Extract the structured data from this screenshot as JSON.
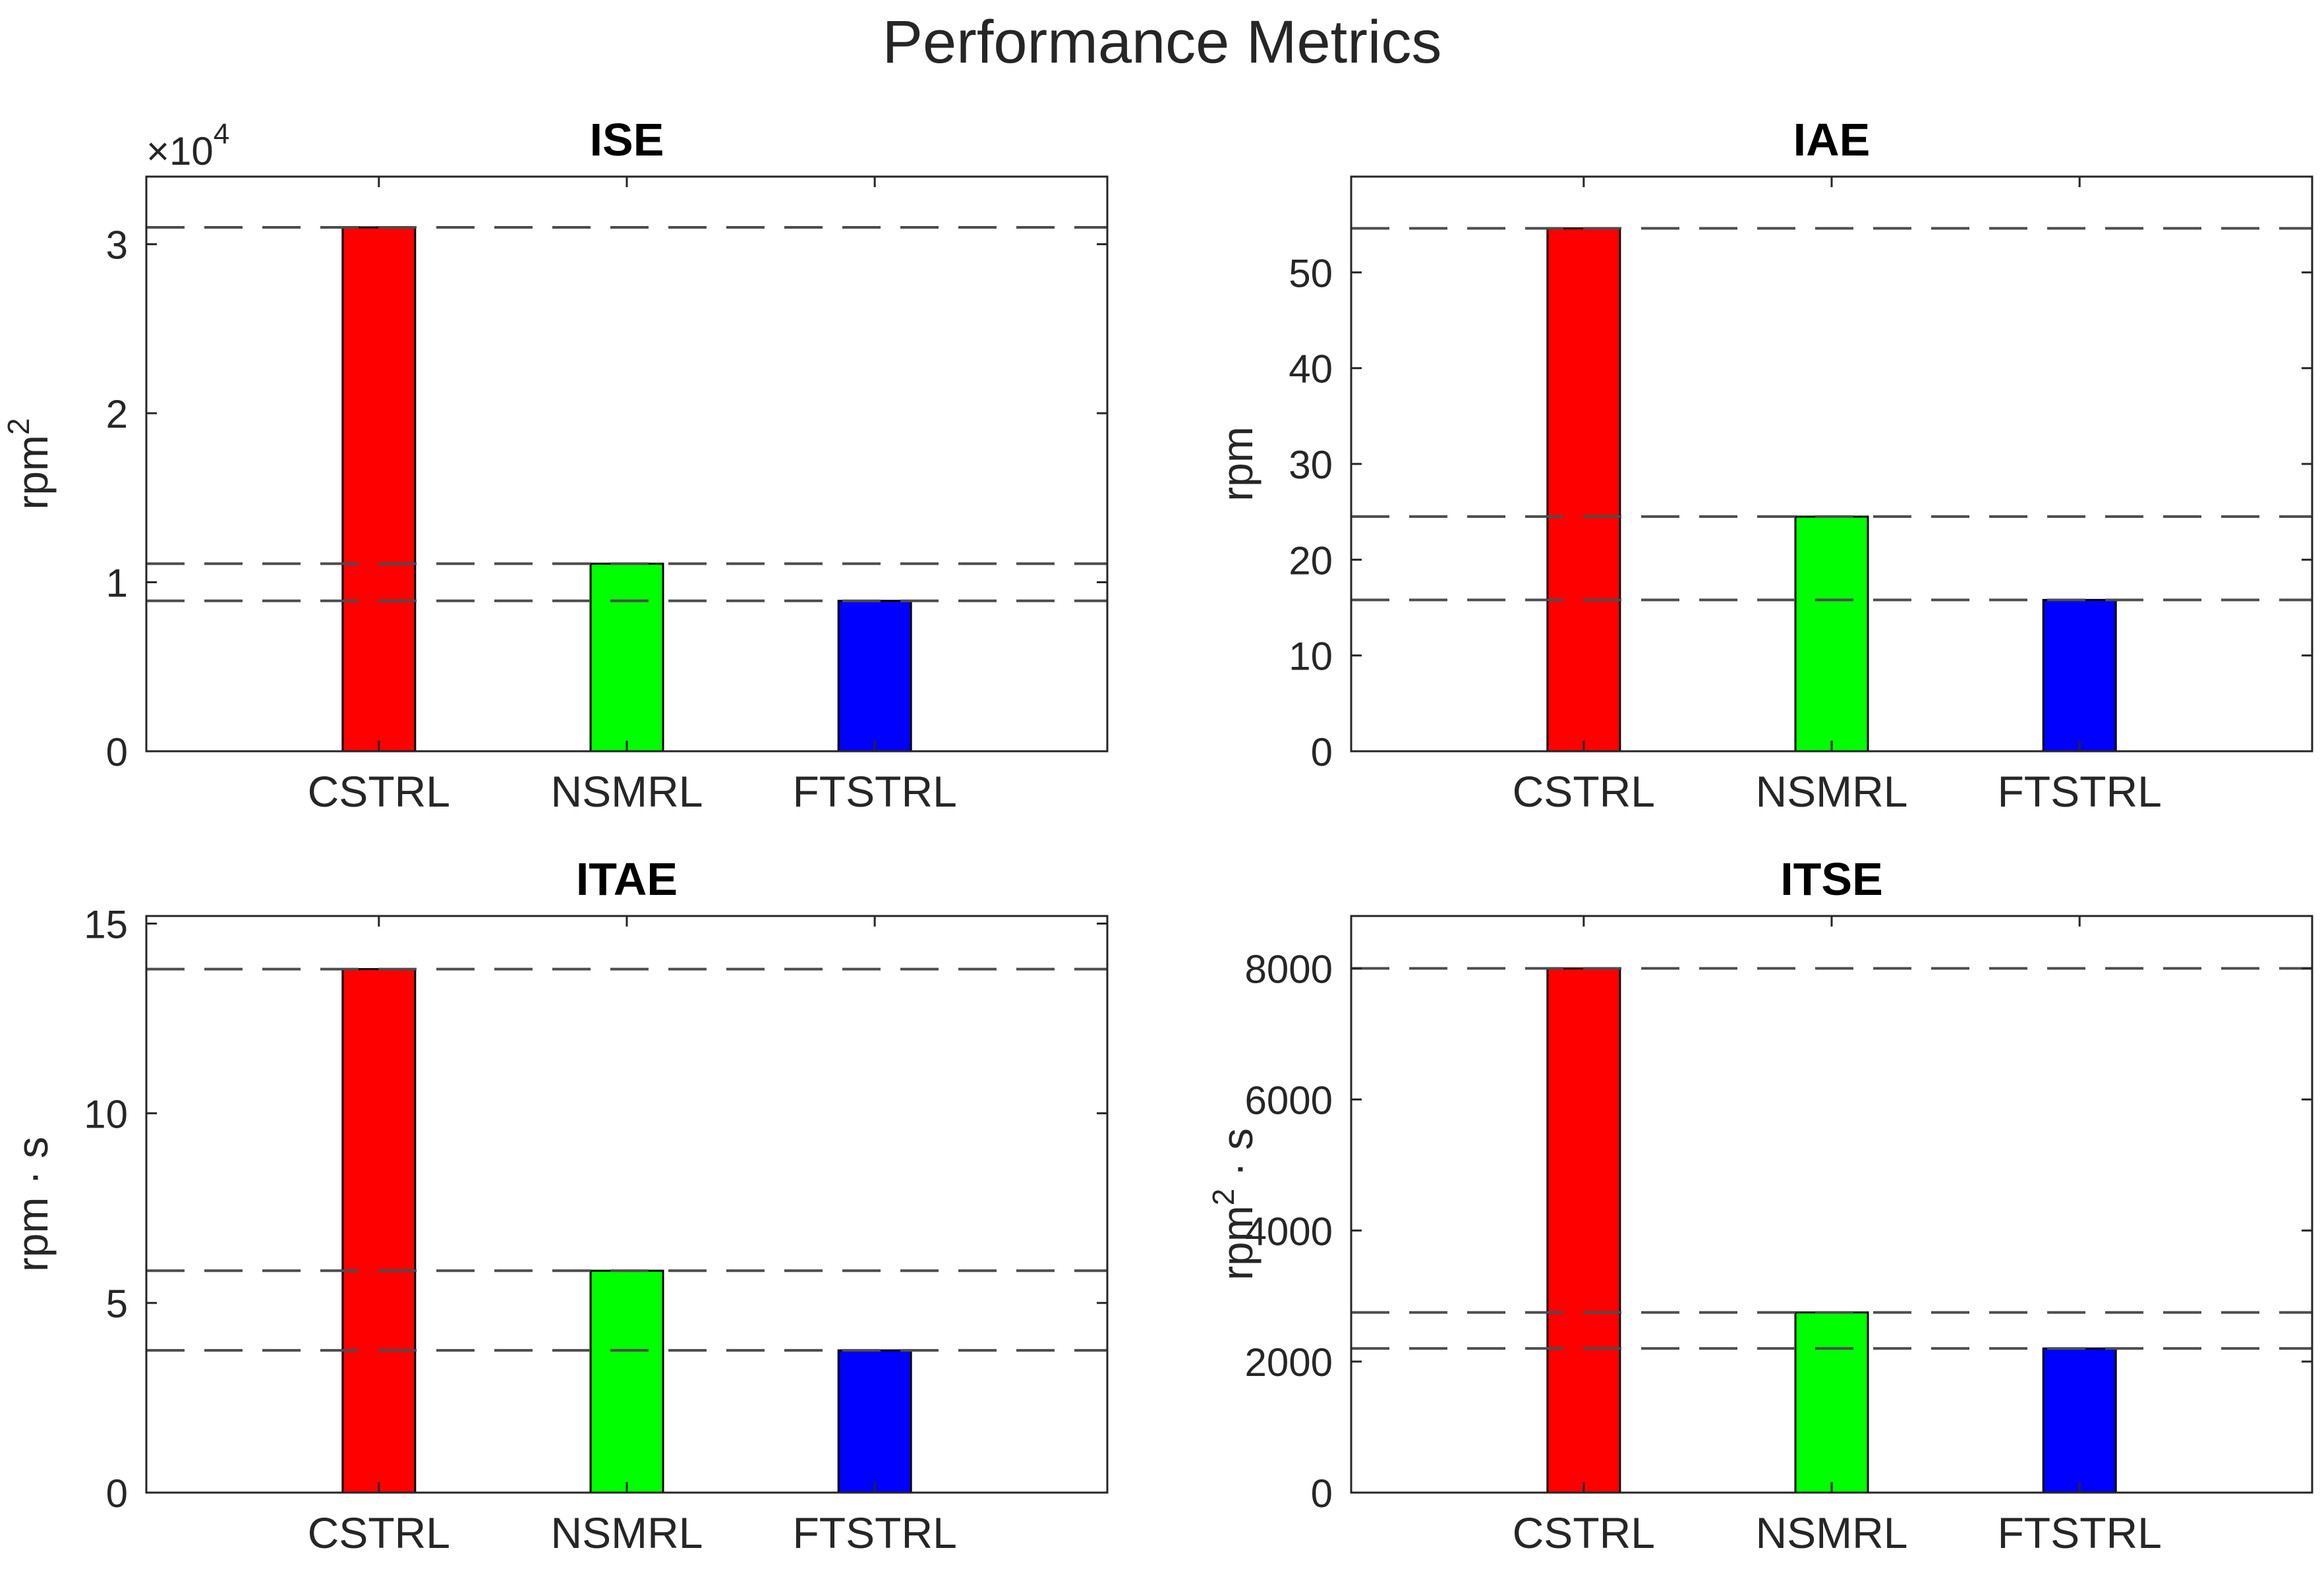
{
  "figure_title": "Performance Metrics",
  "colors": {
    "bars": [
      "#ff0000",
      "#00ff00",
      "#0000ff"
    ],
    "axis": "#262626",
    "reference_line": "#4d4d4d"
  },
  "chart_data": [
    {
      "type": "bar",
      "title": "ISE",
      "ylabel": "rpm",
      "ylabel_sup": "2",
      "ylabel_suffix": "",
      "exponent_label": "×10",
      "exponent_sup": "4",
      "categories": [
        "CSTRL",
        "NSMRL",
        "FTSTRL"
      ],
      "values": [
        31000,
        11100,
        8900
      ],
      "ylim": [
        0,
        34000
      ],
      "ytick_values": [
        0,
        10000,
        20000,
        30000
      ],
      "ytick_labels": [
        "0",
        "1",
        "2",
        "3"
      ],
      "reference_lines": [
        31000,
        11100,
        8900
      ]
    },
    {
      "type": "bar",
      "title": "IAE",
      "ylabel": "rpm",
      "ylabel_sup": "",
      "ylabel_suffix": "",
      "categories": [
        "CSTRL",
        "NSMRL",
        "FTSTRL"
      ],
      "values": [
        54.6,
        24.5,
        15.8
      ],
      "ylim": [
        0,
        60
      ],
      "ytick_values": [
        0,
        10,
        20,
        30,
        40,
        50
      ],
      "ytick_labels": [
        "0",
        "10",
        "20",
        "30",
        "40",
        "50"
      ],
      "reference_lines": [
        54.6,
        24.5,
        15.8
      ]
    },
    {
      "type": "bar",
      "title": "ITAE",
      "ylabel": "rpm · s",
      "ylabel_sup": "",
      "ylabel_suffix": "",
      "categories": [
        "CSTRL",
        "NSMRL",
        "FTSTRL"
      ],
      "values": [
        13.8,
        5.85,
        3.75
      ],
      "ylim": [
        0,
        15.2
      ],
      "ytick_values": [
        0,
        5,
        10,
        15
      ],
      "ytick_labels": [
        "0",
        "5",
        "10",
        "15"
      ],
      "reference_lines": [
        13.8,
        5.85,
        3.75
      ]
    },
    {
      "type": "bar",
      "title": "ITSE",
      "ylabel": "rpm",
      "ylabel_sup": "2",
      "ylabel_suffix": " · s",
      "categories": [
        "CSTRL",
        "NSMRL",
        "FTSTRL"
      ],
      "values": [
        8000,
        2750,
        2200
      ],
      "ylim": [
        0,
        8800
      ],
      "ytick_values": [
        0,
        2000,
        4000,
        6000,
        8000
      ],
      "ytick_labels": [
        "0",
        "2000",
        "4000",
        "6000",
        "8000"
      ],
      "reference_lines": [
        8000,
        2750,
        2200
      ]
    }
  ]
}
